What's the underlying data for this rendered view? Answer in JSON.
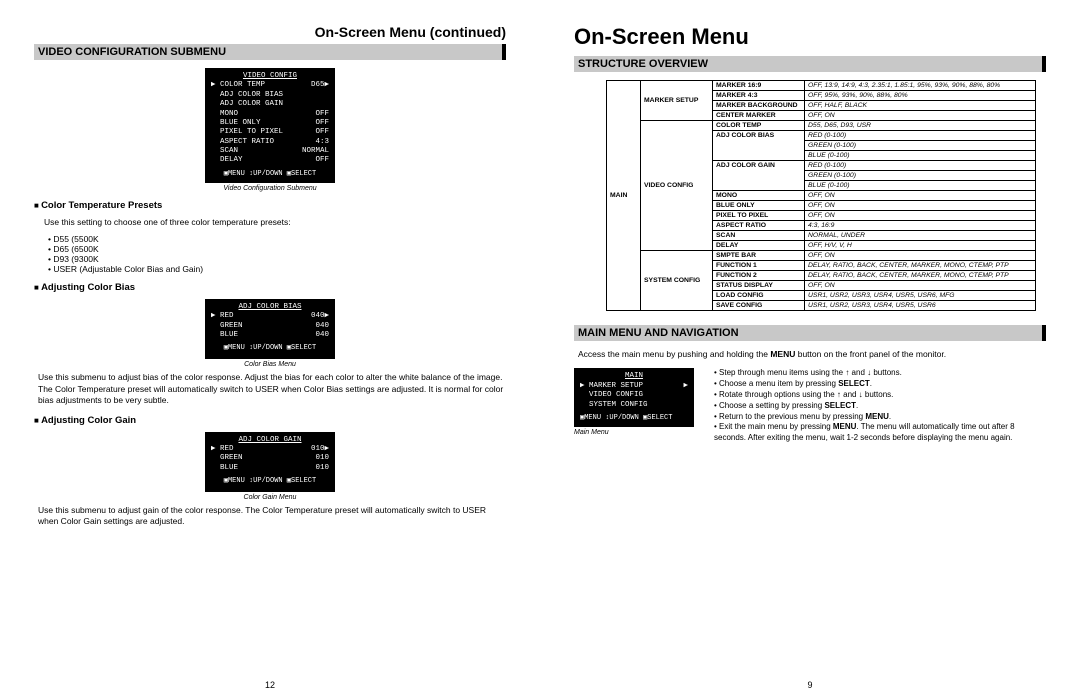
{
  "leftPage": {
    "continuedTitle": "On-Screen Menu (continued)",
    "sectionBar": "VIDEO CONFIGURATION SUBMENU",
    "videoConfigMenu": {
      "title": "VIDEO CONFIG",
      "rows": [
        [
          "▶ COLOR TEMP",
          "D65▶"
        ],
        [
          "  ADJ COLOR BIAS",
          ""
        ],
        [
          "  ADJ COLOR GAIN",
          ""
        ],
        [
          "  MONO",
          "OFF"
        ],
        [
          "  BLUE ONLY",
          "OFF"
        ],
        [
          "  PIXEL TO PIXEL",
          "OFF"
        ],
        [
          "  ASPECT RATIO",
          "4:3"
        ],
        [
          "  SCAN",
          "NORMAL"
        ],
        [
          "  DELAY",
          "OFF"
        ]
      ],
      "footer": "▣MENU ↕UP/DOWN ▣SELECT",
      "caption": "Video Configuration Submenu"
    },
    "colorTemp": {
      "heading": "Color Temperature Presets",
      "text": "Use this setting to choose one of three color temperature presets:",
      "items": [
        "D55 (5500K",
        "D65 (6500K",
        "D93 (9300K",
        "USER (Adjustable Color Bias and Gain)"
      ]
    },
    "colorBias": {
      "heading": "Adjusting Color Bias",
      "menu": {
        "title": "ADJ COLOR BIAS",
        "rows": [
          [
            "▶ RED",
            "040▶"
          ],
          [
            "  GREEN",
            "040"
          ],
          [
            "  BLUE",
            "040"
          ]
        ],
        "footer": "▣MENU ↕UP/DOWN ▣SELECT",
        "caption": "Color Bias Menu"
      },
      "text": "Use this submenu to adjust bias of the color response. Adjust the bias for each color to alter the white balance of the image. The Color Temperature preset will automatically switch to USER when Color Bias settings are adjusted. It is normal for color bias adjustments to be very subtle."
    },
    "colorGain": {
      "heading": "Adjusting Color Gain",
      "menu": {
        "title": "ADJ COLOR GAIN",
        "rows": [
          [
            "▶ RED",
            "010▶"
          ],
          [
            "  GREEN",
            "010"
          ],
          [
            "  BLUE",
            "010"
          ]
        ],
        "footer": "▣MENU ↕UP/DOWN ▣SELECT",
        "caption": "Color Gain Menu"
      },
      "text": "Use this submenu to adjust gain of the color response. The Color Temperature preset will automatically switch to USER when Color Gain settings are adjusted."
    },
    "pageNumber": "12"
  },
  "rightPage": {
    "title": "On-Screen Menu",
    "structureBar": "STRUCTURE OVERVIEW",
    "structureTable": {
      "mainLabel": "MAIN",
      "groups": [
        {
          "group": "MARKER SETUP",
          "rows": [
            {
              "k": "MARKER 16:9",
              "v": "OFF, 13:9, 14:9, 4:3, 2.35:1, 1.85:1, 95%, 93%, 90%, 88%, 80%",
              "ital": true
            },
            {
              "k": "MARKER 4:3",
              "v": "OFF, 95%, 93%, 90%, 88%, 80%",
              "ital": true
            },
            {
              "k": "MARKER BACKGROUND",
              "v": "OFF, HALF, BLACK",
              "ital": true
            },
            {
              "k": "CENTER MARKER",
              "v": "OFF, ON",
              "ital": true
            }
          ]
        },
        {
          "group": "VIDEO CONFIG",
          "rows": [
            {
              "k": "COLOR TEMP",
              "v": "D55, D65, D93, USR",
              "ital": true
            },
            {
              "k": "ADJ COLOR BIAS",
              "v": "RED (0-100)\nGREEN (0-100)\nBLUE (0-100)",
              "ital": true,
              "multi": 3
            },
            {
              "k": "ADJ COLOR GAIN",
              "v": "RED (0-100)\nGREEN (0-100)\nBLUE (0-100)",
              "ital": true,
              "multi": 3
            },
            {
              "k": "MONO",
              "v": "OFF, ON",
              "ital": true
            },
            {
              "k": "BLUE ONLY",
              "v": "OFF, ON",
              "ital": true
            },
            {
              "k": "PIXEL TO PIXEL",
              "v": "OFF, ON",
              "ital": true
            },
            {
              "k": "ASPECT RATIO",
              "v": "4:3, 16:9",
              "ital": true
            },
            {
              "k": "SCAN",
              "v": "NORMAL, UNDER",
              "ital": true
            },
            {
              "k": "DELAY",
              "v": "OFF, H/V, V, H",
              "ital": true
            }
          ]
        },
        {
          "group": "SYSTEM CONFIG",
          "rows": [
            {
              "k": "SMPTE BAR",
              "v": "OFF, ON",
              "ital": true
            },
            {
              "k": "FUNCTION 1",
              "v": "DELAY, RATIO, BACK, CENTER, MARKER, MONO, CTEMP, PTP",
              "ital": true
            },
            {
              "k": "FUNCTION 2",
              "v": "DELAY, RATIO, BACK, CENTER, MARKER, MONO, CTEMP, PTP",
              "ital": true
            },
            {
              "k": "STATUS DISPLAY",
              "v": "OFF, ON",
              "ital": true
            },
            {
              "k": "LOAD CONFIG",
              "v": "USR1, USR2, USR3, USR4, USR5, USR6, MFG",
              "ital": true
            },
            {
              "k": "SAVE CONFIG",
              "v": "USR1, USR2, USR3, USR4, USR5, USR6",
              "ital": true
            }
          ]
        }
      ]
    },
    "navBar": "MAIN MENU AND NAVIGATION",
    "navText1": "Access the main menu by pushing and holding the ",
    "navBold": "MENU",
    "navText2": " button on the front panel of the monitor.",
    "mainMenu": {
      "title": "MAIN",
      "rows": [
        [
          "▶ MARKER SETUP",
          "▶"
        ],
        [
          "  VIDEO CONFIG",
          ""
        ],
        [
          "  SYSTEM CONFIG",
          ""
        ]
      ],
      "footer": "▣MENU ↕UP/DOWN ▣SELECT",
      "caption": "Main Menu"
    },
    "navList": [
      "Step through menu items using the ↑ and ↓ buttons.",
      "Choose a menu item by pressing SELECT.",
      "Rotate through options using the ↑ and ↓ buttons.",
      "Choose a setting by pressing SELECT.",
      "Return to the previous menu by pressing MENU.",
      "Exit the main menu by pressing MENU. The menu will automatically time out after 8 seconds. After exiting the menu, wait 1-2 seconds before displaying the menu again."
    ],
    "pageNumber": "9"
  },
  "colors": {
    "bar": "#c8c8c8"
  }
}
